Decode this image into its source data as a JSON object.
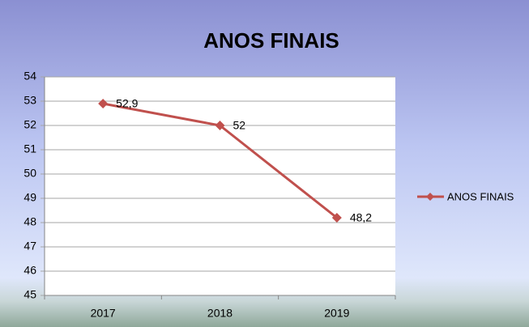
{
  "chart_data": {
    "type": "line",
    "title": "ANOS FINAIS",
    "categories": [
      "2017",
      "2018",
      "2019"
    ],
    "series": [
      {
        "name": "ANOS FINAIS",
        "color": "#c0504d",
        "values": [
          52.9,
          52,
          48.2
        ],
        "value_labels": [
          "52,9",
          "52",
          "48,2"
        ]
      }
    ],
    "ylim": [
      45,
      54
    ],
    "yticks": [
      45,
      46,
      47,
      48,
      49,
      50,
      51,
      52,
      53,
      54
    ],
    "grid": true,
    "legend": "right"
  }
}
